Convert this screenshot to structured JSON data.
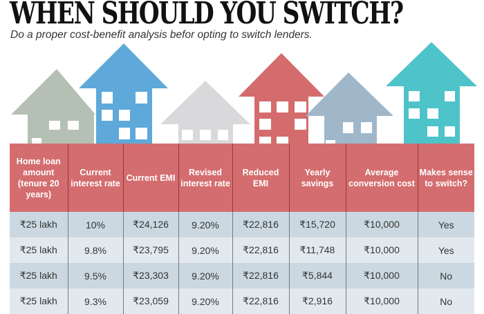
{
  "title": "WHEN SHOULD YOU SWITCH?",
  "subtitle": "Do a proper cost-benefit analysis befor opting to switch lenders.",
  "colors": {
    "header": "#d46d6f",
    "row_dark": "#cbd8e1",
    "row_light": "#e2e9ee",
    "house_sage": "#b5c0b4",
    "house_blue": "#5ea9da",
    "house_grey": "#d9d9db",
    "house_red": "#d46b6c",
    "house_slate": "#a0b7ca",
    "house_teal": "#4ec3ca"
  },
  "chart_data": {
    "type": "table",
    "title": "WHEN SHOULD YOU SWITCH?",
    "columns": [
      "Home loan amount (tenure 20 years)",
      "Current interest rate",
      "Current EMI",
      "Revised interest rate",
      "Reduced EMI",
      "Yearly savings",
      "Average conversion cost",
      "Makes sense to switch?"
    ],
    "rows": [
      [
        "₹25 lakh",
        "10%",
        "₹24,126",
        "9.20%",
        "₹22,816",
        "₹15,720",
        "₹10,000",
        "Yes"
      ],
      [
        "₹25 lakh",
        "9.8%",
        "₹23,795",
        "9.20%",
        "₹22,816",
        "₹11,748",
        "₹10,000",
        "Yes"
      ],
      [
        "₹25 lakh",
        "9.5%",
        "₹23,303",
        "9.20%",
        "₹22,816",
        "₹5,844",
        "₹10,000",
        "No"
      ],
      [
        "₹25 lakh",
        "9.3%",
        "₹23,059",
        "9.20%",
        "₹22,816",
        "₹2,916",
        "₹10,000",
        "No"
      ]
    ]
  }
}
